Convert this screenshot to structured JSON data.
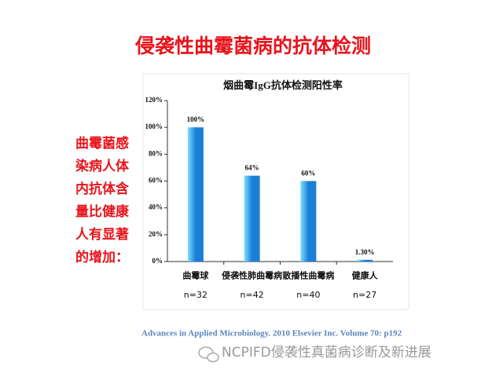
{
  "slide_title": "侵袭性曲霉菌病的抗体检测",
  "side_text": [
    "曲霉菌感",
    "染病人体",
    "内抗体含",
    "量比健康",
    "人有显著",
    "的增加："
  ],
  "citation": "Advances in Applied Microbiology. 2010 Elsevier Inc. Volume 70: p192",
  "watermark": "NCPIFD侵袭性真菌病诊断及新进展",
  "chart_data": {
    "type": "bar",
    "title": "烟曲霉IgG抗体检测阳性率",
    "categories": [
      "曲霉球",
      "侵袭性肺曲霉病",
      "散播性曲霉病",
      "健康人"
    ],
    "sample_sizes": [
      "n=32",
      "n=42",
      "n=40",
      "n=27"
    ],
    "values": [
      100,
      64,
      60,
      1.3
    ],
    "value_labels": [
      "100%",
      "64%",
      "60%",
      "1.30%"
    ],
    "color": "#1a7fd6",
    "ylim": [
      0,
      120
    ],
    "yticks": [
      {
        "value": 0,
        "label": "0%"
      },
      {
        "value": 20,
        "label": "20%"
      },
      {
        "value": 40,
        "label": "40%"
      },
      {
        "value": 60,
        "label": "60%"
      },
      {
        "value": 80,
        "label": "80%"
      },
      {
        "value": 100,
        "label": "100%"
      },
      {
        "value": 120,
        "label": "120%"
      }
    ]
  }
}
